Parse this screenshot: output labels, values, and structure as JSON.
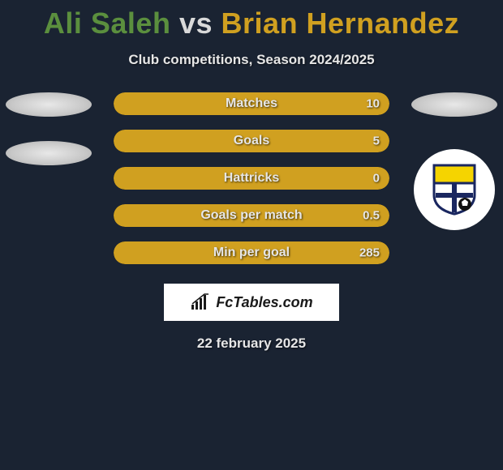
{
  "title": {
    "player1": "Ali Saleh",
    "vs": "vs",
    "player2": "Brian Hernandez",
    "player1_color": "#5b8f3e",
    "vs_color": "#d9d9d9",
    "player2_color": "#d0a020"
  },
  "subtitle": {
    "text": "Club competitions, Season 2024/2025",
    "color": "#e6e6e6"
  },
  "bars": {
    "track_bg": "#0d1520",
    "fill_color": "#d0a020",
    "label_color": "#e6e6e6",
    "value_color": "#e6e6e6",
    "items": [
      {
        "label": "Matches",
        "value": "10",
        "fill_pct": 100
      },
      {
        "label": "Goals",
        "value": "5",
        "fill_pct": 100
      },
      {
        "label": "Hattricks",
        "value": "0",
        "fill_pct": 100
      },
      {
        "label": "Goals per match",
        "value": "0.5",
        "fill_pct": 100
      },
      {
        "label": "Min per goal",
        "value": "285",
        "fill_pct": 100
      }
    ]
  },
  "left_badges": {
    "ellipse_count": 2
  },
  "right_badges": {
    "ellipse_count": 1,
    "club": {
      "shield_border": "#1a2760",
      "shield_top": "#f5d400",
      "shield_bottom": "#ffffff",
      "cross": "#1a2760",
      "ball": "#111111"
    }
  },
  "brand": {
    "text": "FcTables.com",
    "box_bg": "#ffffff",
    "text_color": "#1a1a1a",
    "icon_color": "#1a1a1a"
  },
  "date": {
    "text": "22 february 2025",
    "color": "#e6e6e6"
  },
  "page_bg": "#1a2332"
}
